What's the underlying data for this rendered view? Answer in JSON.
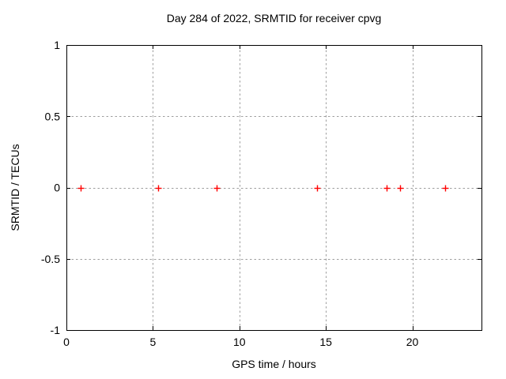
{
  "chart_data": {
    "type": "scatter",
    "title": "Day 284 of 2022, SRMTID for receiver cpvg",
    "xlabel": "GPS time / hours",
    "ylabel": "SRMTID / TECUs",
    "xlim": [
      0,
      24
    ],
    "ylim": [
      -1,
      1
    ],
    "xticks": [
      0,
      5,
      10,
      15,
      20
    ],
    "xtick_labels": [
      "0",
      "5",
      "10",
      "15",
      "20"
    ],
    "yticks": [
      -1,
      -0.5,
      0,
      0.5,
      1
    ],
    "ytick_labels": [
      "-1",
      "-0.5",
      "0",
      "0.5",
      "1"
    ],
    "grid": true,
    "legend": "none",
    "marker": "plus",
    "series": [
      {
        "x": [
          0.8,
          5.3,
          8.7,
          14.5,
          18.5,
          19.3,
          21.9
        ],
        "y": [
          0,
          0,
          0,
          0,
          0,
          0,
          0
        ]
      }
    ],
    "colors": {
      "marker": "#ff0000",
      "grid": "#9e9e9e",
      "border": "#000000",
      "text": "#000000",
      "background": "#ffffff"
    }
  }
}
